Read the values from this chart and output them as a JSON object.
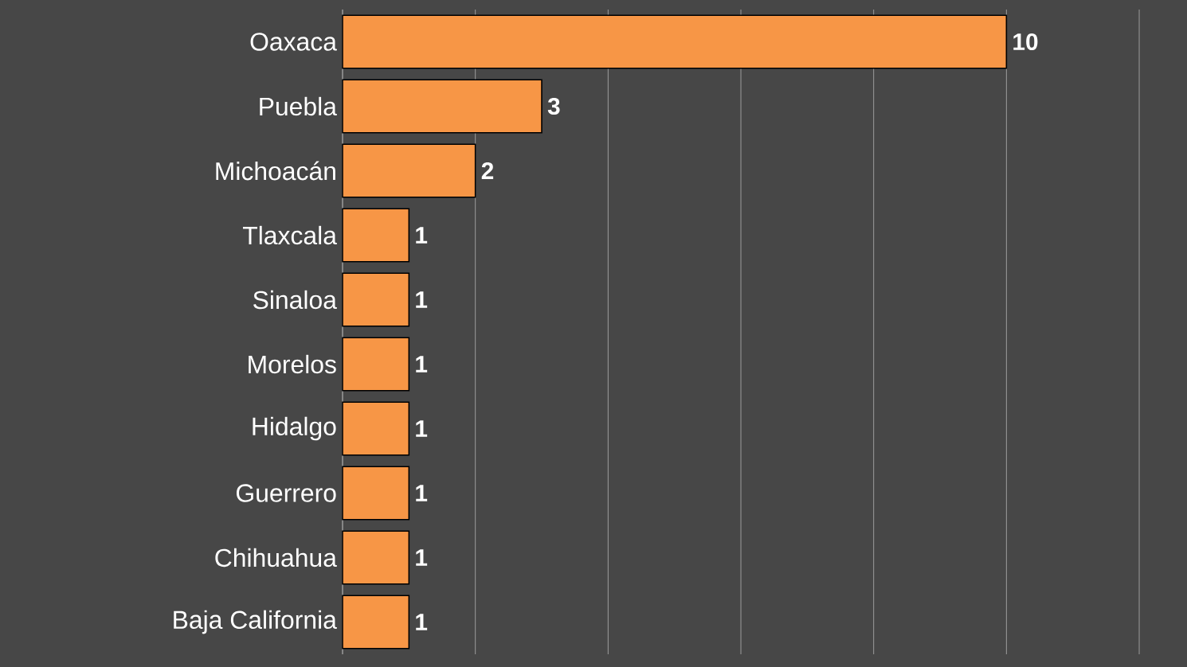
{
  "chart_data": {
    "type": "bar",
    "orientation": "horizontal",
    "categories": [
      "Oaxaca",
      "Puebla",
      "Michoacán",
      "Tlaxcala",
      "Sinaloa",
      "Morelos",
      "Hidalgo",
      "Guerrero",
      "Chihuahua",
      "Baja California"
    ],
    "values": [
      10,
      3,
      2,
      1,
      1,
      1,
      1,
      1,
      1,
      1
    ],
    "color": "#f79646",
    "xlim": [
      0,
      12
    ],
    "xticks": [
      {
        "value": 0,
        "label": null
      },
      {
        "value": 2,
        "label": null
      },
      {
        "value": 4,
        "label": null
      },
      {
        "value": 6,
        "label": null
      },
      {
        "value": 8,
        "label": null
      },
      {
        "value": 10,
        "label": null
      },
      {
        "value": 12,
        "label": null
      }
    ],
    "grid": "x",
    "data_labels": true,
    "tick_labels": "y"
  }
}
